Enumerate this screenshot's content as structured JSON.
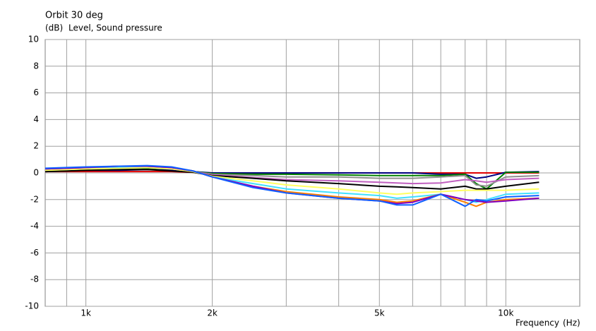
{
  "chart_data": {
    "type": "line",
    "title": "Orbit 30 deg",
    "y_unit": "(dB)",
    "y_label": "Level, Sound pressure",
    "x_label": "Frequency",
    "x_unit": "(Hz)",
    "xscale": "log",
    "grid": true,
    "xlim": [
      800,
      15000
    ],
    "xticks": [
      {
        "value": 1000,
        "label": "1k"
      },
      {
        "value": 2000,
        "label": "2k"
      },
      {
        "value": 5000,
        "label": "5k"
      },
      {
        "value": 10000,
        "label": "10k"
      }
    ],
    "xminor": [
      900,
      3000,
      4000,
      6000,
      7000,
      8000,
      9000
    ],
    "ylim": [
      -10,
      10
    ],
    "yticks": [
      -10,
      -8,
      -6,
      -4,
      -2,
      0,
      2,
      4,
      6,
      8,
      10
    ],
    "x": [
      800,
      900,
      1000,
      1200,
      1400,
      1600,
      1800,
      2000,
      2500,
      3000,
      4000,
      5000,
      5500,
      6000,
      7000,
      8000,
      8500,
      9000,
      10000,
      12000
    ],
    "series": [
      {
        "color": "#e00000",
        "values": [
          0.1,
          0.1,
          0.1,
          0.1,
          0.1,
          0.1,
          0.05,
          0,
          0,
          0,
          0,
          0,
          0,
          0,
          0,
          0,
          0,
          0,
          0,
          0
        ]
      },
      {
        "color": "#000080",
        "values": [
          0.1,
          0.15,
          0.2,
          0.2,
          0.25,
          0.2,
          0.1,
          0,
          0,
          0,
          0,
          0,
          0,
          0,
          -0.1,
          -0.1,
          -0.4,
          -0.3,
          0.05,
          0.1
        ]
      },
      {
        "color": "#008000",
        "values": [
          0.2,
          0.25,
          0.3,
          0.35,
          0.35,
          0.3,
          0.1,
          -0.05,
          -0.1,
          -0.1,
          -0.15,
          -0.2,
          -0.2,
          -0.2,
          -0.2,
          -0.1,
          -0.8,
          -1.2,
          0.05,
          0.05
        ]
      },
      {
        "color": "#909090",
        "values": [
          0.2,
          0.25,
          0.3,
          0.35,
          0.4,
          0.3,
          0.1,
          -0.1,
          -0.2,
          -0.3,
          -0.3,
          -0.4,
          -0.4,
          -0.4,
          -0.3,
          -0.2,
          -0.9,
          -1.0,
          -0.3,
          -0.2
        ]
      },
      {
        "color": "#c060c0",
        "values": [
          0.25,
          0.3,
          0.35,
          0.4,
          0.4,
          0.3,
          0.1,
          -0.15,
          -0.35,
          -0.5,
          -0.6,
          -0.7,
          -0.75,
          -0.8,
          -0.75,
          -0.5,
          -0.6,
          -0.7,
          -0.5,
          -0.4
        ]
      },
      {
        "color": "#000000",
        "values": [
          0.1,
          0.15,
          0.2,
          0.25,
          0.25,
          0.15,
          0.05,
          -0.2,
          -0.4,
          -0.6,
          -0.8,
          -1.0,
          -1.05,
          -1.1,
          -1.2,
          -1.0,
          -1.2,
          -1.2,
          -1.0,
          -0.7
        ]
      },
      {
        "color": "#ffff60",
        "values": [
          0.2,
          0.25,
          0.3,
          0.35,
          0.4,
          0.3,
          0.1,
          -0.25,
          -0.6,
          -0.9,
          -1.2,
          -1.5,
          -1.6,
          -1.5,
          -1.4,
          -1.3,
          -1.3,
          -1.3,
          -1.3,
          -1.2
        ]
      },
      {
        "color": "#40e0ff",
        "values": [
          0.3,
          0.35,
          0.4,
          0.45,
          0.5,
          0.4,
          0.15,
          -0.3,
          -0.8,
          -1.2,
          -1.5,
          -1.7,
          -1.9,
          -1.8,
          -1.6,
          -2.0,
          -2.2,
          -2.0,
          -1.6,
          -1.5
        ]
      },
      {
        "color": "#ff8000",
        "values": [
          0.3,
          0.35,
          0.4,
          0.5,
          0.5,
          0.4,
          0.15,
          -0.3,
          -1.0,
          -1.4,
          -1.8,
          -2.0,
          -2.2,
          -2.1,
          -1.6,
          -2.2,
          -2.5,
          -2.2,
          -2.0,
          -1.9
        ]
      },
      {
        "color": "#8000c0",
        "values": [
          0.3,
          0.35,
          0.4,
          0.5,
          0.5,
          0.4,
          0.15,
          -0.3,
          -1.0,
          -1.5,
          -1.9,
          -2.1,
          -2.3,
          -2.2,
          -1.6,
          -2.0,
          -2.1,
          -2.2,
          -2.1,
          -1.9
        ]
      },
      {
        "color": "#1060ff",
        "values": [
          0.35,
          0.4,
          0.45,
          0.5,
          0.55,
          0.45,
          0.15,
          -0.3,
          -1.1,
          -1.5,
          -1.9,
          -2.1,
          -2.4,
          -2.4,
          -1.6,
          -2.5,
          -2.0,
          -2.1,
          -1.8,
          -1.7
        ]
      }
    ]
  }
}
